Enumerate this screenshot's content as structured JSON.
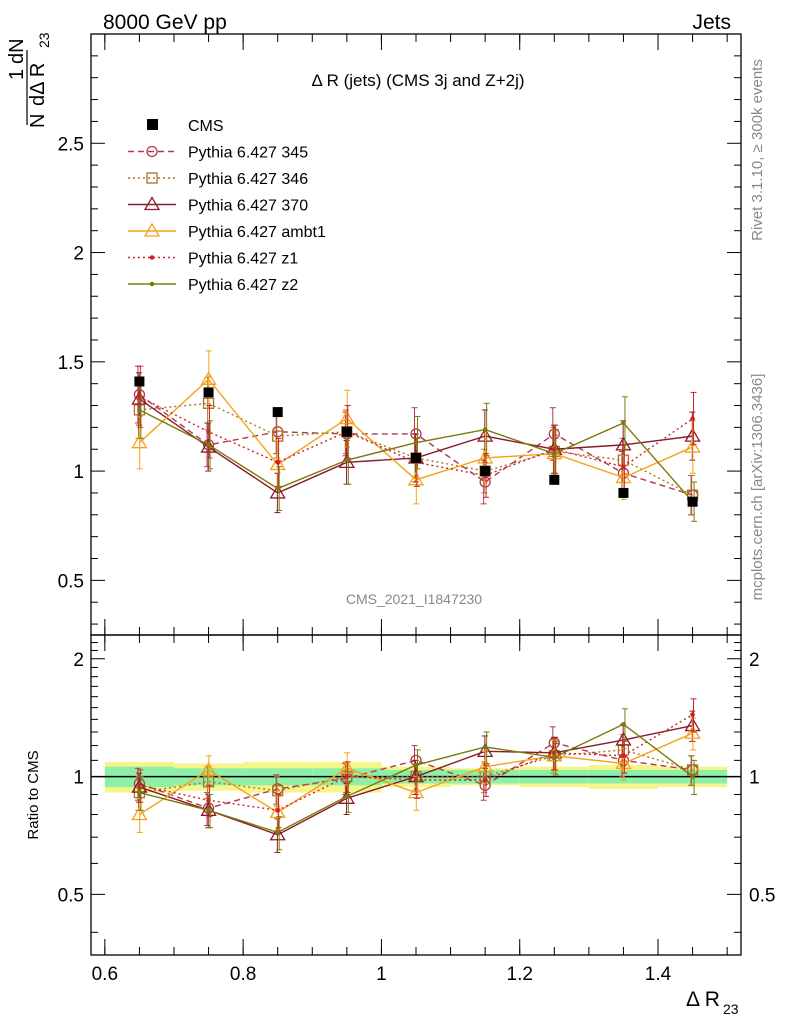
{
  "header": {
    "left": "8000 GeV pp",
    "right": "Jets"
  },
  "side": {
    "rivet": "Rivet 3.1.10, ≥ 300k events",
    "mcplots": "mcplots.cern.ch [arXiv:1306.3436]"
  },
  "chart_data": [
    {
      "type": "line",
      "title": "Δ R (jets) (CMS 3j and Z+2j)",
      "watermark": "CMS_2021_I1847230",
      "xlabel": "Δ R23",
      "ylabel": "1/N dN/dΔ R23",
      "xlim": [
        0.58,
        1.52
      ],
      "ylim": [
        0.25,
        3.0
      ],
      "yticks": [
        "0.5",
        "1",
        "1.5",
        "2",
        "2.5"
      ],
      "xticks": [
        "0.6",
        "0.8",
        "1",
        "1.2",
        "1.4"
      ],
      "x": [
        0.65,
        0.75,
        0.85,
        0.95,
        1.05,
        1.15,
        1.25,
        1.35,
        1.45
      ],
      "data": {
        "name": "CMS",
        "color": "#000000",
        "values": [
          1.41,
          1.36,
          1.27,
          1.18,
          1.06,
          1.0,
          0.96,
          0.9,
          0.86
        ]
      },
      "series": [
        {
          "name": "Pythia 6.427 345",
          "color": "#b03a48",
          "dash": "dashed",
          "marker": "circle",
          "values": [
            1.35,
            1.12,
            1.18,
            1.17,
            1.17,
            0.95,
            1.17,
            0.99,
            0.89
          ],
          "errors": [
            0.13,
            0.1,
            0.1,
            0.1,
            0.12,
            0.1,
            0.12,
            0.1,
            0.09
          ]
        },
        {
          "name": "Pythia 6.427 346",
          "color": "#a8742c",
          "dash": "dotted",
          "marker": "square",
          "values": [
            1.28,
            1.31,
            1.16,
            1.18,
            1.06,
            1.0,
            1.09,
            1.05,
            0.89
          ],
          "errors": [
            0.13,
            0.12,
            0.1,
            0.1,
            0.11,
            0.1,
            0.11,
            0.1,
            0.09
          ]
        },
        {
          "name": "Pythia 6.427 370",
          "color": "#8b1a2a",
          "dash": "solid",
          "marker": "triangle",
          "values": [
            1.33,
            1.11,
            0.9,
            1.04,
            1.06,
            1.16,
            1.1,
            1.12,
            1.16
          ],
          "errors": [
            0.12,
            0.11,
            0.09,
            0.1,
            0.11,
            0.12,
            0.11,
            0.11,
            0.11
          ]
        },
        {
          "name": "Pythia 6.427 ambt1",
          "color": "#f5a21a",
          "dash": "solid",
          "marker": "triangle",
          "values": [
            1.13,
            1.42,
            1.03,
            1.24,
            0.96,
            1.06,
            1.08,
            0.97,
            1.11
          ],
          "errors": [
            0.12,
            0.13,
            0.11,
            0.13,
            0.11,
            0.11,
            0.11,
            0.1,
            0.12
          ]
        },
        {
          "name": "Pythia 6.427 z1",
          "color": "#d0202a",
          "dash": "dotted",
          "marker": "dot",
          "values": [
            1.34,
            1.18,
            1.04,
            1.18,
            1.04,
            0.98,
            1.1,
            1.02,
            1.24
          ],
          "errors": [
            0.14,
            0.12,
            0.11,
            0.12,
            0.11,
            0.1,
            0.11,
            0.1,
            0.12
          ]
        },
        {
          "name": "Pythia 6.427 z2",
          "color": "#7a7a0c",
          "dash": "solid",
          "marker": "dot",
          "values": [
            1.28,
            1.12,
            0.92,
            1.05,
            1.13,
            1.19,
            1.08,
            1.22,
            0.86
          ],
          "errors": [
            0.13,
            0.11,
            0.1,
            0.11,
            0.12,
            0.12,
            0.11,
            0.12,
            0.09
          ]
        }
      ]
    },
    {
      "type": "line",
      "ylabel": "Ratio to CMS",
      "xlabel": "Δ R23",
      "xlim": [
        0.58,
        1.52
      ],
      "ylim": [
        0.35,
        2.3
      ],
      "yticks_left": [
        "0.5",
        "1",
        "2"
      ],
      "yticks_right": [
        "0.5",
        "1",
        "2"
      ],
      "x": [
        0.65,
        0.75,
        0.85,
        0.95,
        1.05,
        1.15,
        1.25,
        1.35,
        1.45
      ],
      "band_green": [
        0.06,
        0.05,
        0.05,
        0.05,
        0.04,
        0.04,
        0.04,
        0.04,
        0.04
      ],
      "band_yellow": [
        0.09,
        0.08,
        0.09,
        0.09,
        0.06,
        0.05,
        0.06,
        0.07,
        0.06
      ],
      "series": [
        {
          "name": "Pythia 6.427 345",
          "values": [
            0.96,
            0.83,
            0.93,
            0.99,
            1.1,
            0.95,
            1.22,
            1.1,
            1.04
          ],
          "errors": [
            0.09,
            0.08,
            0.08,
            0.09,
            0.1,
            0.08,
            0.12,
            0.1,
            0.09
          ]
        },
        {
          "name": "Pythia 6.427 346",
          "values": [
            0.91,
            0.97,
            0.92,
            1.0,
            1.0,
            1.0,
            1.13,
            1.17,
            1.04
          ],
          "errors": [
            0.09,
            0.09,
            0.08,
            0.09,
            0.1,
            0.09,
            0.11,
            0.11,
            0.09
          ]
        },
        {
          "name": "Pythia 6.427 370",
          "values": [
            0.94,
            0.82,
            0.71,
            0.88,
            1.0,
            1.16,
            1.15,
            1.24,
            1.35
          ],
          "errors": [
            0.08,
            0.08,
            0.07,
            0.08,
            0.1,
            0.11,
            0.11,
            0.12,
            0.12
          ]
        },
        {
          "name": "Pythia 6.427 ambt1",
          "values": [
            0.8,
            1.04,
            0.81,
            1.05,
            0.91,
            1.06,
            1.13,
            1.08,
            1.29
          ],
          "errors": [
            0.08,
            0.09,
            0.08,
            0.1,
            0.09,
            0.1,
            0.11,
            0.1,
            0.12
          ]
        },
        {
          "name": "Pythia 6.427 z1",
          "values": [
            0.95,
            0.87,
            0.82,
            1.0,
            0.98,
            0.98,
            1.15,
            1.13,
            1.44
          ],
          "errors": [
            0.09,
            0.08,
            0.08,
            0.09,
            0.1,
            0.09,
            0.11,
            0.11,
            0.14
          ]
        },
        {
          "name": "Pythia 6.427 z2",
          "values": [
            0.91,
            0.82,
            0.72,
            0.89,
            1.07,
            1.19,
            1.12,
            1.36,
            1.0
          ],
          "errors": [
            0.09,
            0.08,
            0.07,
            0.08,
            0.1,
            0.11,
            0.11,
            0.13,
            0.1
          ]
        }
      ]
    }
  ]
}
